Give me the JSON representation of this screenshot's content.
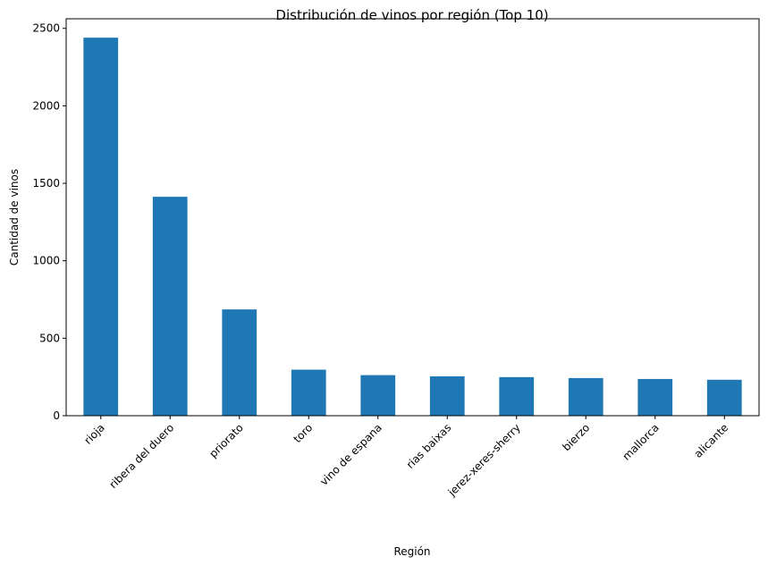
{
  "chart_data": {
    "type": "bar",
    "title": "Distribución de vinos por región (Top 10)",
    "xlabel": "Región",
    "ylabel": "Cantidad de vinos",
    "categories": [
      "rioja",
      "ribera del duero",
      "priorato",
      "toro",
      "vino de espana",
      "rias baixas",
      "jerez-xeres-sherry",
      "bierzo",
      "mallorca",
      "alicante"
    ],
    "values": [
      2440,
      1413,
      686,
      297,
      262,
      254,
      249,
      243,
      237,
      232
    ],
    "ylim": [
      0,
      2562
    ],
    "yticks": [
      0,
      500,
      1000,
      1500,
      2000,
      2500
    ],
    "ytick_labels": [
      "0",
      "500",
      "1000",
      "1500",
      "2000",
      "2500"
    ],
    "bar_color": "#1f77b4",
    "grid": false,
    "legend": "none"
  }
}
